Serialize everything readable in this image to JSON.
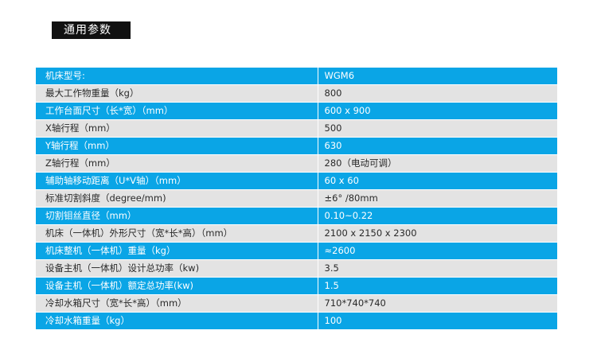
{
  "section": {
    "title": "通用参数"
  },
  "colors": {
    "accent_blue": "#0aa5e6",
    "row_gray": "#e3e3e3",
    "title_bg": "#111111"
  },
  "specs": [
    {
      "label": "机床型号:",
      "value": "WGM6"
    },
    {
      "label": "最大工作物重量（kg）",
      "value": "800"
    },
    {
      "label": "工作台面尺寸（长*宽）（mm）",
      "value": "600 x 900"
    },
    {
      "label": "X轴行程（mm）",
      "value": "500"
    },
    {
      "label": "Y轴行程（mm）",
      "value": "630"
    },
    {
      "label": "Z轴行程（mm）",
      "value": "280（电动可调）"
    },
    {
      "label": "辅助轴移动距离（U*V轴）（mm）",
      "value": "60 x 60"
    },
    {
      "label": "标准切割斜度（degree/mm)",
      "value": "±6°  /80mm"
    },
    {
      "label": "切割钼丝直径（mm）",
      "value": "0.10~0.22"
    },
    {
      "label": "机床（一体机）外形尺寸（宽*长*高）（mm）",
      "value": "2100 x 2150 x 2300"
    },
    {
      "label": "机床整机（一体机）重量（kg）",
      "value": "≈2600"
    },
    {
      "label": "设备主机（一体机）设计总功率（kw)",
      "value": "3.5"
    },
    {
      "label": "设备主机（一体机）额定总功率(kw)",
      "value": "1.5"
    },
    {
      "label": "冷却水箱尺寸（宽*长*高）（mm）",
      "value": "710*740*740"
    },
    {
      "label": "冷却水箱重量（kg）",
      "value": "100"
    }
  ]
}
